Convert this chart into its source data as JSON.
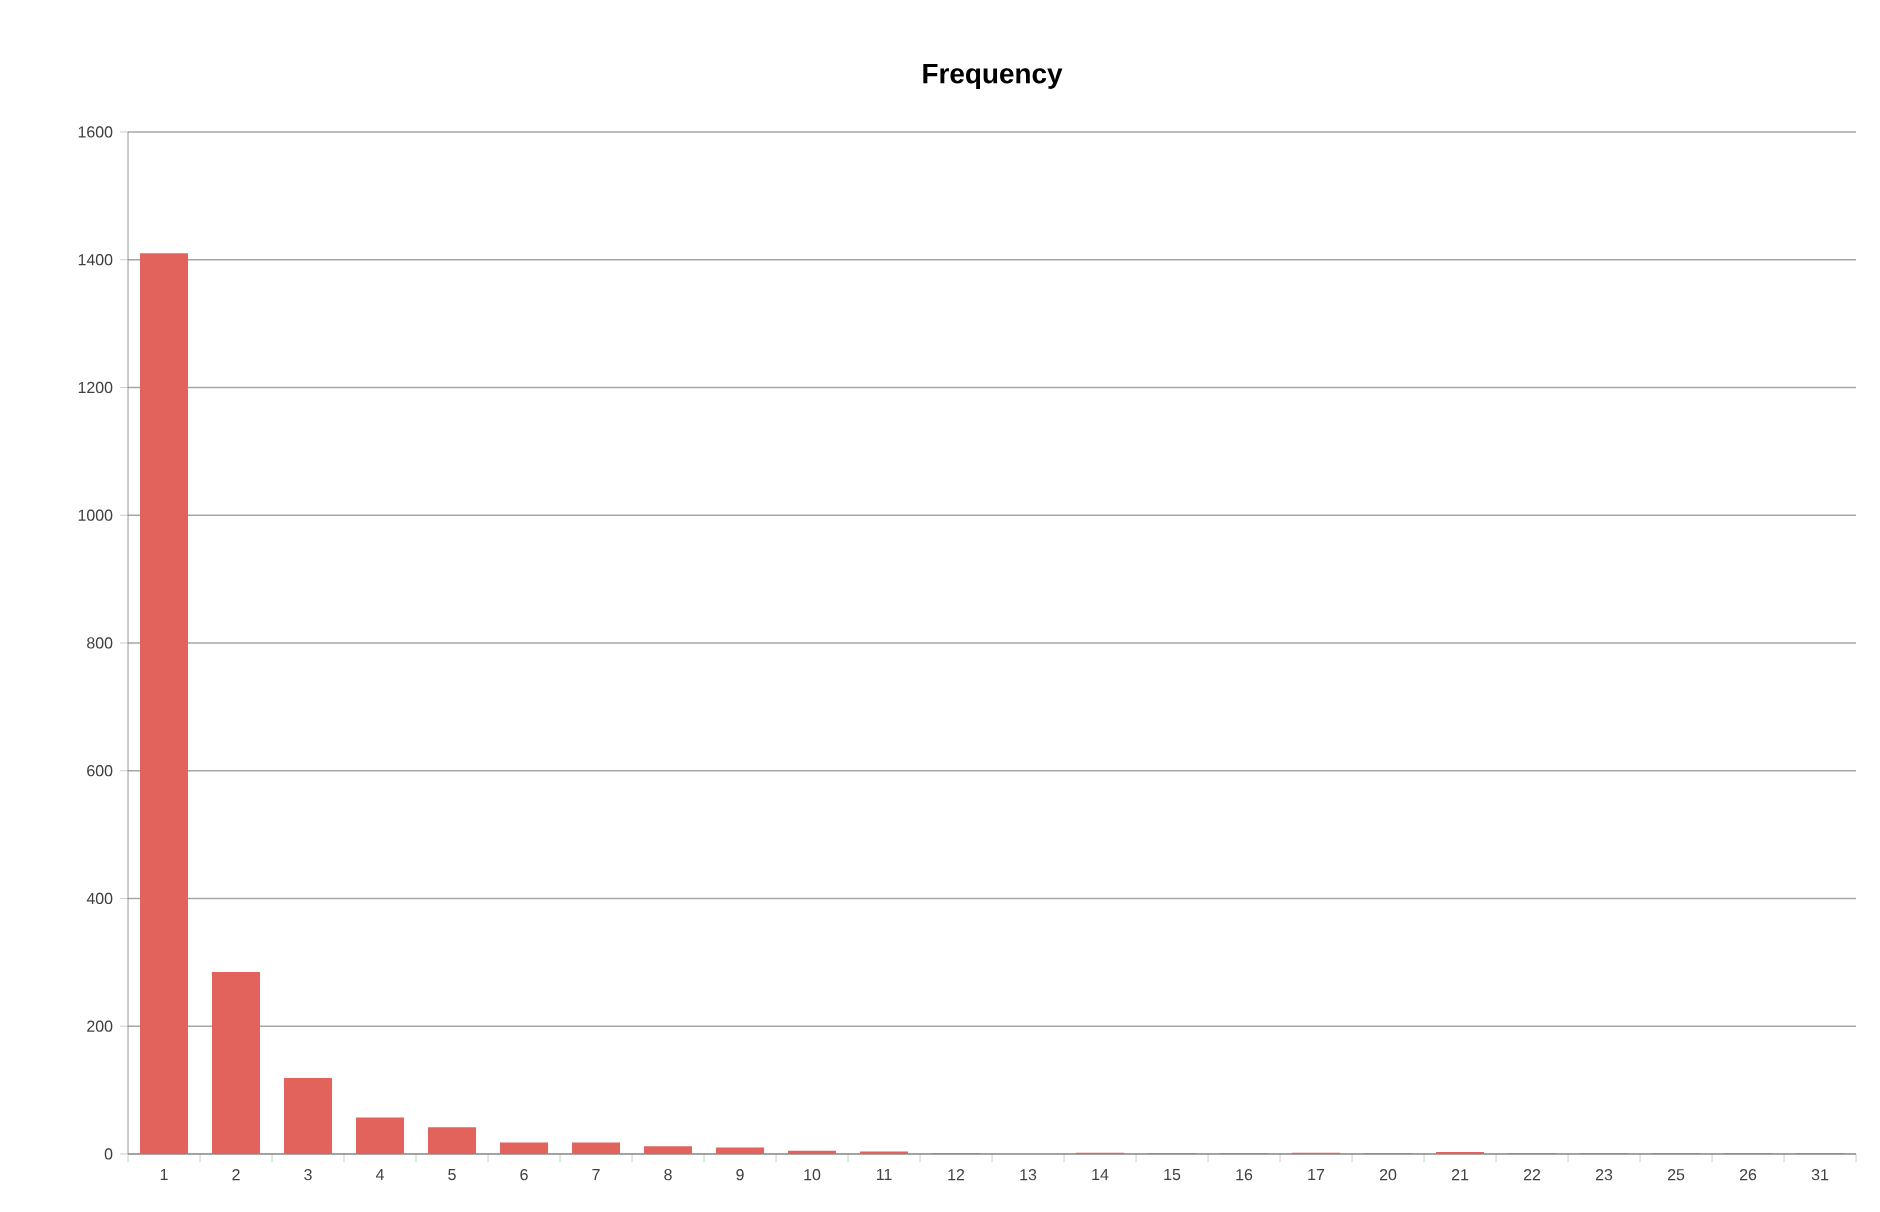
{
  "chart_data": {
    "type": "bar",
    "title": "Frequency",
    "categories": [
      "1",
      "2",
      "3",
      "4",
      "5",
      "6",
      "7",
      "8",
      "9",
      "10",
      "11",
      "12",
      "13",
      "14",
      "15",
      "16",
      "17",
      "20",
      "21",
      "22",
      "23",
      "25",
      "26",
      "31"
    ],
    "values": [
      1410,
      285,
      119,
      57,
      42,
      18,
      18,
      12,
      10,
      5,
      4,
      1,
      0,
      2,
      1,
      1,
      2,
      1,
      3,
      1,
      1,
      1,
      1,
      1
    ],
    "color": "#e2625c",
    "ylim": [
      0,
      1600
    ],
    "yticks": [
      0,
      200,
      400,
      600,
      800,
      1000,
      1200,
      1400,
      1600
    ],
    "grid": "y"
  }
}
